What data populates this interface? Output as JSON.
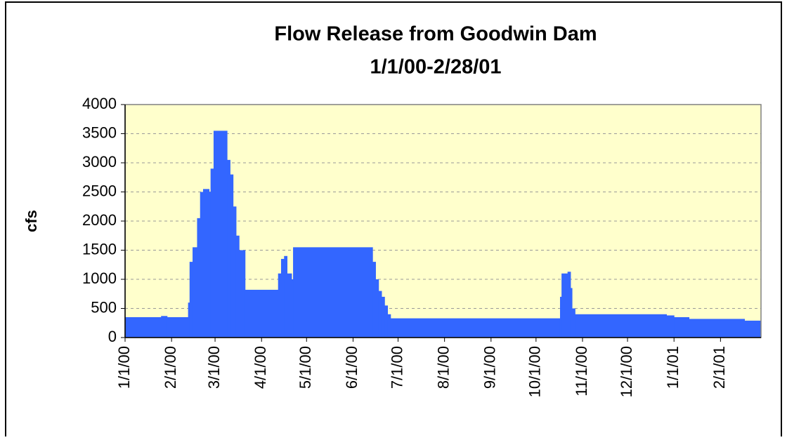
{
  "chart_data": {
    "type": "step-area",
    "title": "Flow Release from Goodwin Dam",
    "subtitle": "1/1/00-2/28/01",
    "y_label": "cfs",
    "color": "#3366ff",
    "plot_background": "#ffffcc",
    "grid": true,
    "x": [
      "2000-01-01",
      "2000-01-25",
      "2000-01-29",
      "2000-02-12",
      "2000-02-13",
      "2000-02-15",
      "2000-02-18",
      "2000-02-20",
      "2000-02-22",
      "2000-02-26",
      "2000-02-27",
      "2000-02-29",
      "2000-03-09",
      "2000-03-11",
      "2000-03-13",
      "2000-03-15",
      "2000-03-17",
      "2000-03-21",
      "2000-04-12",
      "2000-04-14",
      "2000-04-16",
      "2000-04-18",
      "2000-04-21",
      "2000-04-22",
      "2000-06-14",
      "2000-06-16",
      "2000-06-18",
      "2000-06-20",
      "2000-06-22",
      "2000-06-24",
      "2000-06-26",
      "2000-10-17",
      "2000-10-18",
      "2000-10-22",
      "2000-10-24",
      "2000-10-25",
      "2000-10-27",
      "2000-12-27",
      "2001-01-01",
      "2001-01-11",
      "2001-02-17"
    ],
    "values": [
      350,
      370,
      350,
      600,
      1300,
      1550,
      2050,
      2500,
      2550,
      2500,
      2900,
      3550,
      3050,
      2800,
      2250,
      1750,
      1500,
      820,
      1100,
      1350,
      1400,
      1100,
      1000,
      1550,
      1300,
      1000,
      800,
      700,
      550,
      400,
      330,
      700,
      1100,
      1130,
      850,
      500,
      400,
      380,
      350,
      320,
      290
    ],
    "xlim": [
      "2000-01-01",
      "2001-02-28"
    ],
    "xticks": [
      {
        "value": "2000-01-01",
        "label": "1/1/00"
      },
      {
        "value": "2000-02-01",
        "label": "2/1/00"
      },
      {
        "value": "2000-03-01",
        "label": "3/1/00"
      },
      {
        "value": "2000-04-01",
        "label": "4/1/00"
      },
      {
        "value": "2000-05-01",
        "label": "5/1/00"
      },
      {
        "value": "2000-06-01",
        "label": "6/1/00"
      },
      {
        "value": "2000-07-01",
        "label": "7/1/00"
      },
      {
        "value": "2000-08-01",
        "label": "8/1/00"
      },
      {
        "value": "2000-09-01",
        "label": "9/1/00"
      },
      {
        "value": "2000-10-01",
        "label": "10/1/00"
      },
      {
        "value": "2000-11-01",
        "label": "11/1/00"
      },
      {
        "value": "2000-12-01",
        "label": "12/1/00"
      },
      {
        "value": "2001-01-01",
        "label": "1/1/01"
      },
      {
        "value": "2001-02-01",
        "label": "2/1/01"
      }
    ],
    "ylim": [
      0,
      4000
    ],
    "yticks": [
      0,
      500,
      1000,
      1500,
      2000,
      2500,
      3000,
      3500,
      4000
    ]
  }
}
